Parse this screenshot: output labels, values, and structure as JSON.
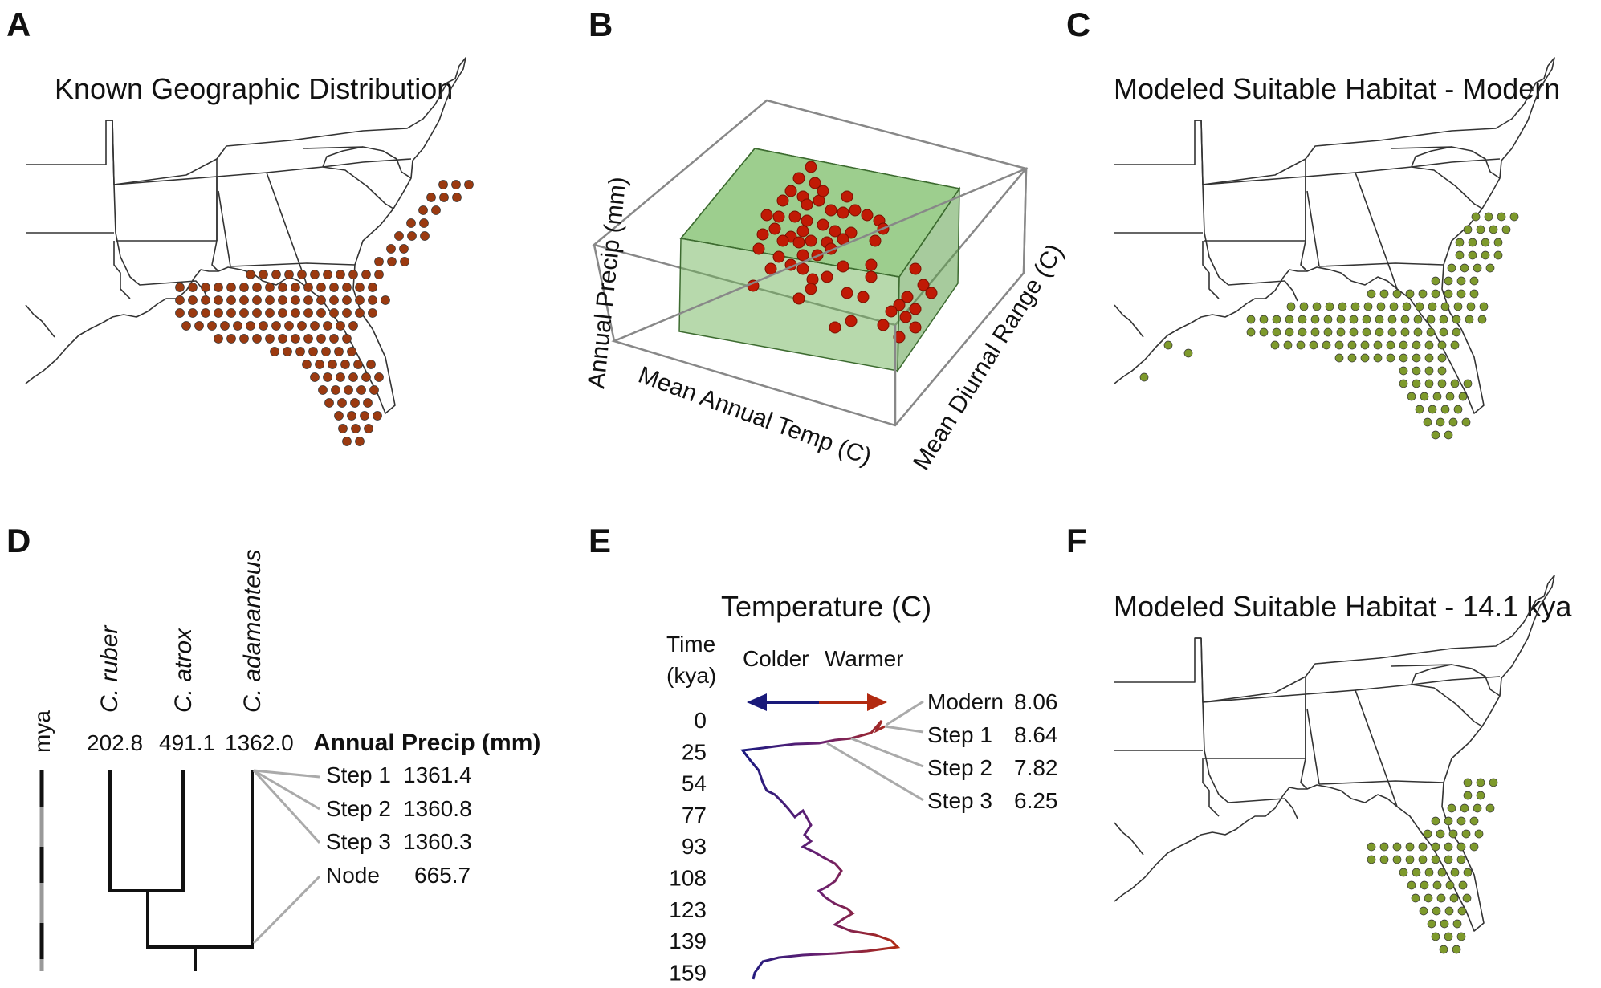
{
  "panels": {
    "A": {
      "letter": "A",
      "title": "Known Geographic Distribution",
      "dot_color": "#9b3a10"
    },
    "B": {
      "letter": "B",
      "xlabel": "Mean Annual Temp (C)",
      "ylabel": "Annual Precip (mm)",
      "zlabel": "Mean Diurnal Range (C)",
      "point_color": "#c01a05",
      "box_color": "#6fb35a"
    },
    "C": {
      "letter": "C",
      "title": "Modeled Suitable Habitat - Modern",
      "dot_color": "#7e9a2c"
    },
    "D": {
      "letter": "D",
      "mya_label": "mya",
      "taxa": [
        {
          "name": "C. ruber",
          "value": "202.8"
        },
        {
          "name": "C. atrox",
          "value": "491.1"
        },
        {
          "name": "C. adamanteus",
          "value": "1362.0"
        }
      ],
      "header": "Annual Precip (mm)",
      "steps": [
        {
          "label": "Step 1",
          "value": "1361.4"
        },
        {
          "label": "Step 2",
          "value": "1360.8"
        },
        {
          "label": "Step 3",
          "value": "1360.3"
        },
        {
          "label": "Node",
          "value": "665.7"
        }
      ]
    },
    "E": {
      "letter": "E",
      "title": "Temperature (C)",
      "time_label": "Time",
      "time_unit": "(kya)",
      "colder": "Colder",
      "warmer": "Warmer",
      "ticks": [
        "0",
        "25",
        "54",
        "77",
        "93",
        "108",
        "123",
        "139",
        "159"
      ],
      "steps": [
        {
          "label": "Modern",
          "value": "8.06"
        },
        {
          "label": "Step 1",
          "value": "8.64"
        },
        {
          "label": "Step 2",
          "value": "7.82"
        },
        {
          "label": "Step 3",
          "value": "6.25"
        }
      ]
    },
    "F": {
      "letter": "F",
      "title": "Modeled Suitable Habitat - 14.1 kya",
      "dot_color": "#7e9a2c"
    }
  }
}
